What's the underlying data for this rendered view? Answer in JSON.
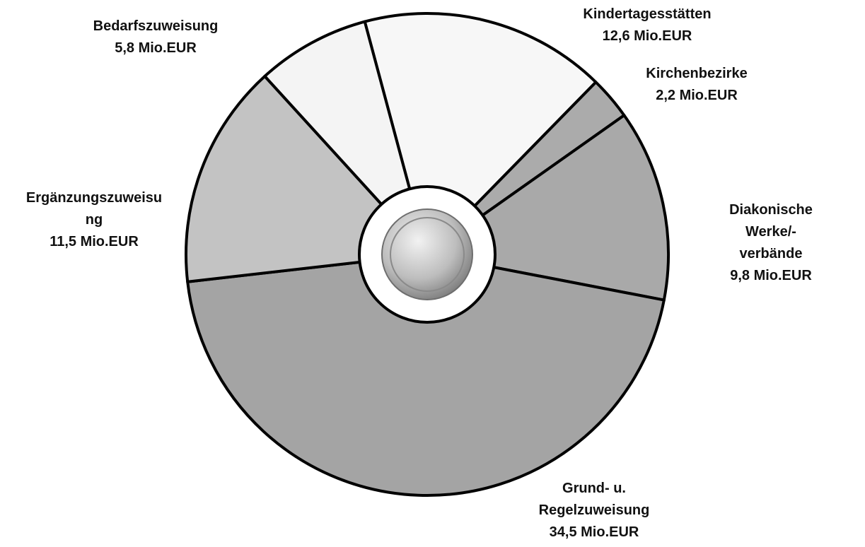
{
  "chart_data": {
    "type": "pie",
    "categories": [
      "Kindertagesstätten",
      "Kirchenbezirke",
      "Diakonische Werke/-\nverbände",
      "Grund- u.\nRegelzuweisung",
      "Ergänzungszuweisu\nng",
      "Bedarfszuweisung"
    ],
    "values": [
      12.6,
      2.2,
      9.8,
      34.5,
      11.5,
      5.8
    ],
    "value_labels": [
      "12,6 Mio.EUR",
      "2,2 Mio.EUR",
      "9,8 Mio.EUR",
      "34,5 Mio.EUR",
      "11,5 Mio.EUR",
      "5,8 Mio.EUR"
    ],
    "colors": [
      "#f7f7f7",
      "#ababab",
      "#a9a9a9",
      "#a4a4a4",
      "#c3c3c3",
      "#f4f4f4"
    ]
  }
}
